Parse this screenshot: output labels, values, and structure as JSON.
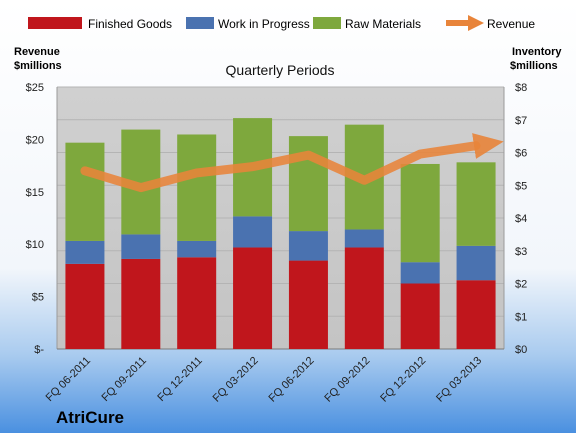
{
  "chart_data": {
    "type": "bar",
    "stacked": true,
    "subtitle": "Quarterly Periods",
    "company": "AtriCure",
    "categories": [
      "FQ 06-2011",
      "FQ 09-2011",
      "FQ 12-2011",
      "FQ 03-2012",
      "FQ 06-2012",
      "FQ 09-2012",
      "FQ 12-2012",
      "FQ 03-2013"
    ],
    "left_axis": {
      "label_line1": "Revenue",
      "label_line2": "$millions",
      "ylim": [
        0,
        25
      ],
      "ticks": [
        0,
        5,
        10,
        15,
        20,
        25
      ],
      "tick_labels": [
        "$-",
        "$5",
        "$10",
        "$15",
        "$20",
        "$25"
      ]
    },
    "right_axis": {
      "label_line1": "Inventory",
      "label_line2": "$millions",
      "ylim": [
        0,
        8
      ],
      "ticks": [
        0,
        1,
        2,
        3,
        4,
        5,
        6,
        7,
        8
      ],
      "tick_labels": [
        "$0",
        "$1",
        "$2",
        "$3",
        "$4",
        "$5",
        "$6",
        "$7",
        "$8"
      ]
    },
    "series": [
      {
        "name": "Finished Goods",
        "axis": "right",
        "color": "#C0161C",
        "values": [
          2.6,
          2.75,
          2.8,
          3.1,
          2.7,
          3.1,
          2.0,
          2.1
        ]
      },
      {
        "name": "Work in Progress",
        "axis": "right",
        "color": "#4A72B0",
        "values": [
          0.7,
          0.75,
          0.5,
          0.95,
          0.9,
          0.55,
          0.65,
          1.05
        ]
      },
      {
        "name": "Raw Materials",
        "axis": "right",
        "color": "#7EA83D",
        "values": [
          3.0,
          3.2,
          3.25,
          3.0,
          2.9,
          3.2,
          3.0,
          2.55
        ]
      },
      {
        "name": "Revenue",
        "axis": "left",
        "type": "line",
        "color": "#E8843A",
        "values": [
          17.0,
          15.4,
          16.8,
          17.4,
          18.5,
          16.1,
          18.6,
          null
        ]
      }
    ],
    "revenue_arrow_end": 19.4,
    "colors": {
      "plot_bg": "#C8C8C8",
      "bg_top": "#FFFFFF",
      "bg_bottom": "#4A90E0"
    }
  }
}
